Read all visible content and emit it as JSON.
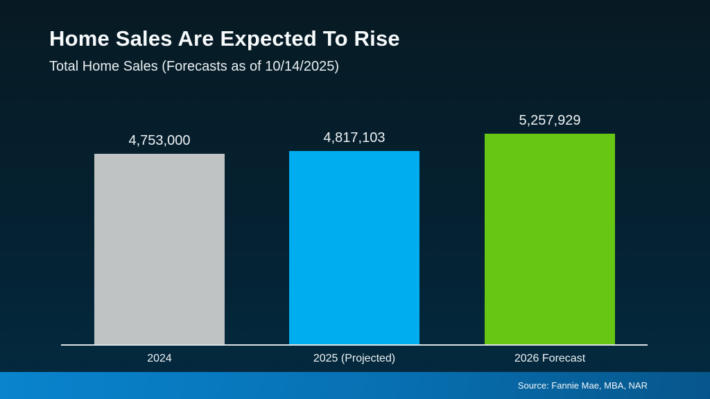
{
  "header": {
    "title": "Home Sales Are Expected To Rise",
    "subtitle": "Total Home Sales (Forecasts as of 10/14/2025)"
  },
  "footer": {
    "source": "Source: Fannie Mae, MBA, NAR"
  },
  "colors": {
    "background_top": "#071a23",
    "background_bottom": "#032a40",
    "axis_line": "#dce3e6",
    "text": "#f7fafb",
    "footer_strip_left": "#0984ce",
    "footer_strip_right": "#07568b"
  },
  "chart_data": {
    "type": "bar",
    "title": "Home Sales Are Expected To Rise",
    "subtitle": "Total Home Sales (Forecasts as of 10/14/2025)",
    "categories": [
      "2024",
      "2025 (Projected)",
      "2026 Forecast"
    ],
    "values": [
      4753000,
      4817103,
      5257929
    ],
    "value_labels": [
      "4,753,000",
      "4,817,103",
      "5,257,929"
    ],
    "bar_colors": [
      "#bfc3c4",
      "#00aeef",
      "#66c613"
    ],
    "xlabel": "",
    "ylabel": "",
    "ylim": [
      0,
      5600000
    ],
    "grid": false,
    "legend": false,
    "data_labels_position": "above-bars",
    "baseline": "white-axis-line"
  }
}
